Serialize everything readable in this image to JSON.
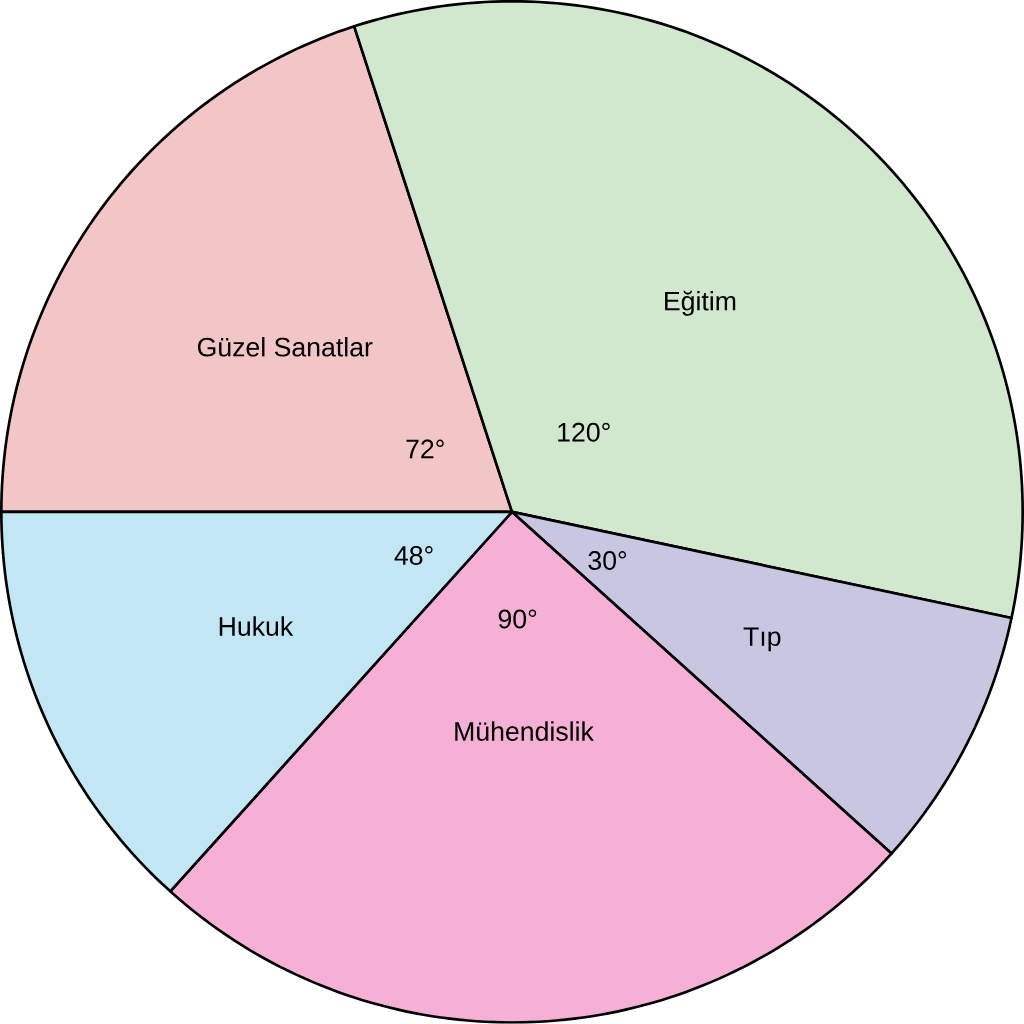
{
  "chart_data": {
    "type": "pie",
    "categories": [
      "Güzel Sanatlar",
      "Eğitim",
      "Tıp",
      "Mühendislik",
      "Hukuk"
    ],
    "values": [
      72,
      120,
      30,
      90,
      48
    ],
    "value_labels": [
      "72°",
      "120°",
      "30°",
      "90°",
      "48°"
    ],
    "colors": [
      "#f2c6c6",
      "#d1e8cf",
      "#c9c6e2",
      "#f6b0d6",
      "#c3e6f5"
    ]
  }
}
